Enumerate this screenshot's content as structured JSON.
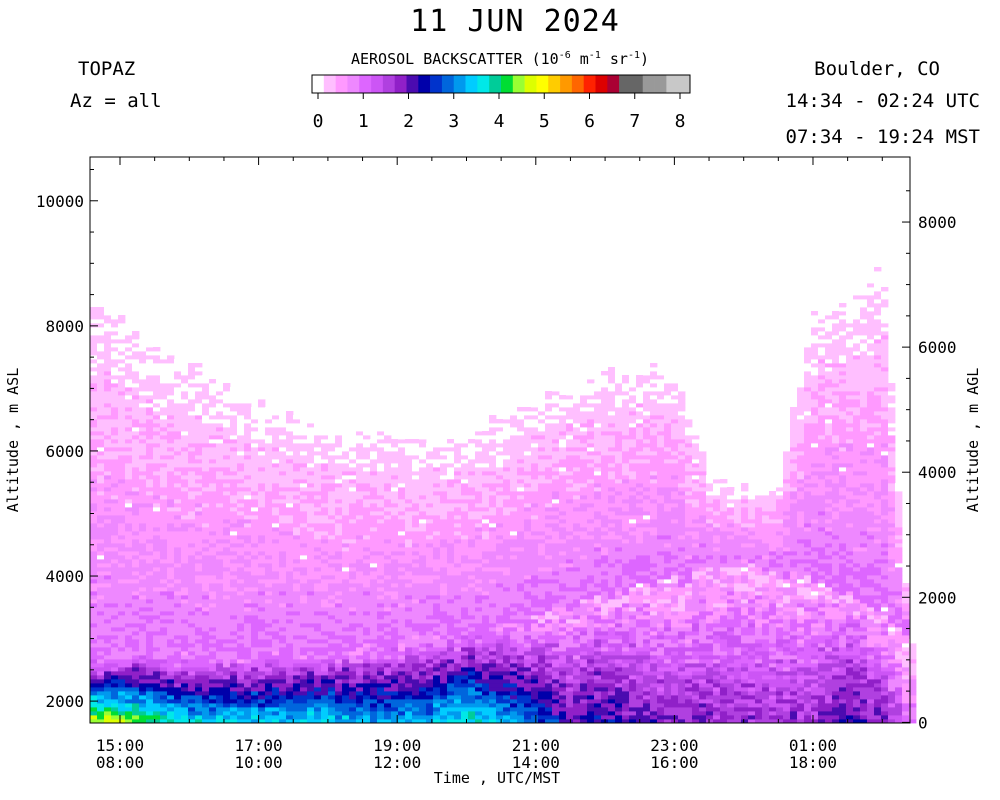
{
  "header": {
    "title": "11 JUN 2024",
    "instrument": "TOPAZ",
    "azimuth": "Az = all",
    "location": "Boulder, CO",
    "utc_range": "14:34 - 02:24 UTC",
    "mst_range": "07:34 - 19:24 MST"
  },
  "colorbar": {
    "title_prefix": "AEROSOL BACKSCATTER (10",
    "title_exp1": "-6",
    "title_mid1": " m",
    "title_exp2": "-1",
    "title_mid2": " sr",
    "title_exp3": "-1",
    "title_suffix": ")",
    "ticks": [
      "0",
      "1",
      "2",
      "3",
      "4",
      "5",
      "6",
      "7",
      "8"
    ],
    "colors": [
      "#ffffff",
      "#ffbfff",
      "#ff99ff",
      "#ee88ff",
      "#dd66ff",
      "#cc55f5",
      "#b040e0",
      "#9020c8",
      "#4b0bb0",
      "#0000aa",
      "#0033cc",
      "#0066dd",
      "#0099ee",
      "#00ccff",
      "#00e8e8",
      "#00cc99",
      "#00dd33",
      "#99ff33",
      "#ddff00",
      "#ffff00",
      "#ffcc00",
      "#ff9900",
      "#ff6600",
      "#ff2200",
      "#dd0000",
      "#aa0033",
      "#666666",
      "#666666",
      "#999999",
      "#999999",
      "#c8c8c8",
      "#c8c8c8"
    ]
  },
  "axes": {
    "x_label": "Time , UTC/MST",
    "y_left_label": "Altitude , m ASL",
    "y_right_label": "Altitude , m AGL",
    "x_ticks_utc": [
      "15:00",
      "17:00",
      "19:00",
      "21:00",
      "23:00",
      "01:00"
    ],
    "x_ticks_mst": [
      "08:00",
      "10:00",
      "12:00",
      "14:00",
      "16:00",
      "18:00"
    ],
    "y_left_ticks": [
      "2000",
      "4000",
      "6000",
      "8000",
      "10000"
    ],
    "y_right_ticks": [
      "0",
      "2000",
      "4000",
      "6000",
      "8000"
    ]
  },
  "chart_data": {
    "type": "heatmap",
    "title": "11 JUN 2024",
    "xlabel": "Time , UTC/MST",
    "ylabel": "Altitude , m ASL",
    "ylabel_right": "Altitude , m AGL",
    "x_range_utc": [
      "14:34",
      "02:24"
    ],
    "ylim_asl": [
      1650,
      10700
    ],
    "colorbar_range": [
      0,
      8
    ],
    "colorbar_units": "10^-6 m^-1 sr^-1",
    "x_time_utc_hours": [
      14.6,
      15.0,
      16.0,
      17.0,
      18.0,
      19.0,
      19.5,
      20.0,
      21.0,
      21.5,
      22.0,
      22.5,
      23.0,
      23.5,
      24.0,
      24.5,
      25.0,
      25.5,
      26.0,
      26.4
    ],
    "top_of_signal_m_asl": [
      8500,
      8100,
      7400,
      6800,
      6500,
      6250,
      6200,
      6300,
      6800,
      7000,
      7300,
      7250,
      7400,
      5700,
      5400,
      5500,
      8200,
      8350,
      9100,
      3000
    ],
    "aerosol_layer_top_m_asl": [
      2600,
      2650,
      2700,
      2750,
      2800,
      2950,
      3050,
      3100,
      3300,
      3500,
      3650,
      3800,
      3900,
      4100,
      4200,
      4000,
      4000,
      3700,
      3500,
      3000
    ],
    "near_surface_max_backscatter": [
      4.8,
      4.5,
      3.6,
      3.5,
      3.6,
      3.2,
      3.4,
      3.9,
      2.8,
      2.2,
      2.4,
      2.0,
      1.9,
      1.9,
      1.8,
      1.8,
      1.8,
      2.3,
      2.0,
      1.0
    ]
  }
}
